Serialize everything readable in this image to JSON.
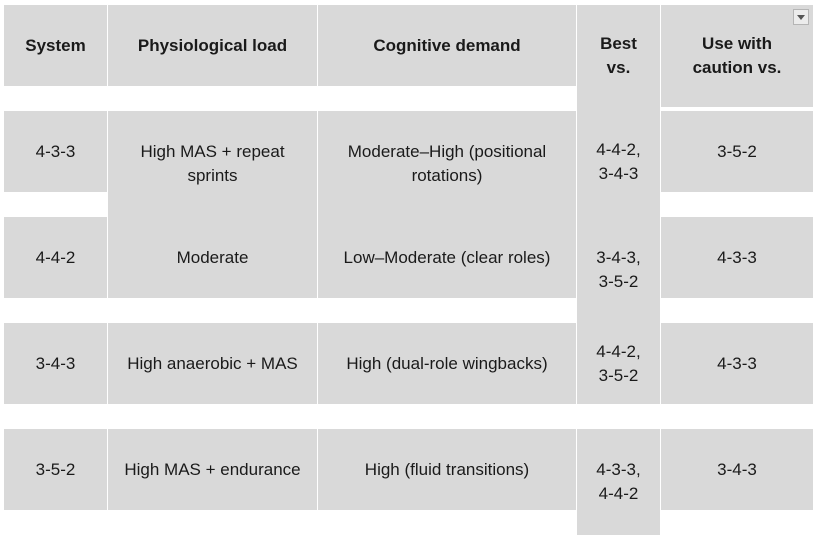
{
  "columns": [
    "System",
    "Physiological load",
    "Cognitive demand",
    "Best vs.",
    "Use with caution vs."
  ],
  "rows": [
    {
      "system": "4-3-3",
      "load": "High MAS + repeat sprints",
      "cognitive": "Moderate–High (positional rotations)",
      "best": "4-4-2, 3-4-3",
      "caution": "3-5-2"
    },
    {
      "system": "4-4-2",
      "load": "Moderate",
      "cognitive": "Low–Moderate (clear roles)",
      "best": "3-4-3, 3-5-2",
      "caution": "4-3-3"
    },
    {
      "system": "3-4-3",
      "load": "High anaerobic + MAS",
      "cognitive": "High (dual-role wingbacks)",
      "best": "4-4-2, 3-5-2",
      "caution": "4-3-3"
    },
    {
      "system": "3-5-2",
      "load": "High MAS + endurance",
      "cognitive": "High (fluid transitions)",
      "best": "4-3-3, 4-4-2",
      "caution": "3-4-3"
    }
  ],
  "icons": {
    "filter": "dropdown-filter-icon"
  }
}
